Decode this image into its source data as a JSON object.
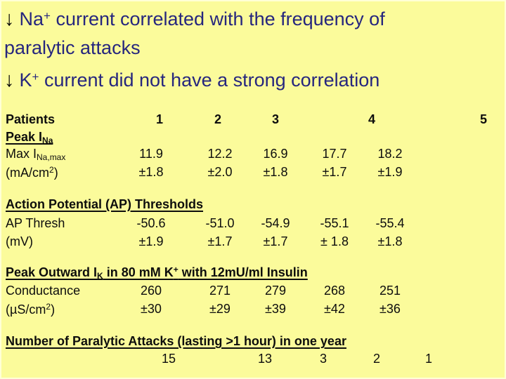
{
  "title": {
    "bullet1": {
      "arrow": "↓",
      "ion": "Na",
      "sup": "+",
      "rest_line1": " current correlated with the frequency of",
      "line2": "paralytic attacks"
    },
    "bullet2": {
      "arrow": "↓",
      "ion": "K",
      "sup": "+",
      "rest": " current did not have a strong correlation"
    }
  },
  "table": {
    "patients_label": "Patients",
    "patient_numbers": [
      "1",
      "2",
      "3",
      "4",
      "5"
    ],
    "peak_ina": {
      "pre": "Peak I",
      "sub": "Na"
    },
    "max_ina": {
      "label_pre": "Max I",
      "label_sub": "Na,max",
      "unit_pre": "(mA/cm",
      "unit_sup": "2",
      "unit_post": ")",
      "values": [
        "11.9",
        "12.2",
        "16.9",
        "17.7",
        "18.2"
      ],
      "errors": [
        "±1.8",
        "±2.0",
        "±1.8",
        "±1.7",
        "±1.9"
      ]
    },
    "ap": {
      "title": "Action Potential (AP) Thresholds",
      "label": "AP Thresh",
      "unit": "(mV)",
      "values": [
        "-50.6",
        "-51.0",
        "-54.9",
        "-55.1",
        "-55.4"
      ],
      "errors": [
        "±1.9",
        "±1.7",
        "±1.7",
        "± 1.8",
        "±1.8"
      ]
    },
    "ik": {
      "title_p1": "Peak Outward I",
      "title_sub": "K",
      "title_p2": " in 80 mM K",
      "title_sup": "+",
      "title_p3": " with 12mU/ml Insulin",
      "label": "Conductance",
      "unit_pre": "(µS/cm",
      "unit_sup": "2",
      "unit_post": ")",
      "values": [
        "260",
        "271",
        "279",
        "268",
        "251"
      ],
      "errors": [
        "±30",
        "±29",
        "±39",
        "±42",
        "±36"
      ]
    },
    "attacks": {
      "title": "Number of Paralytic Attacks (lasting >1 hour) in one year",
      "values": [
        "15",
        "13",
        "3",
        "2",
        "1"
      ]
    }
  },
  "colors": {
    "background": "#fbfb9b",
    "title_text": "#26267e",
    "arrow": "#050505",
    "table_text": "#0d0d0d"
  }
}
